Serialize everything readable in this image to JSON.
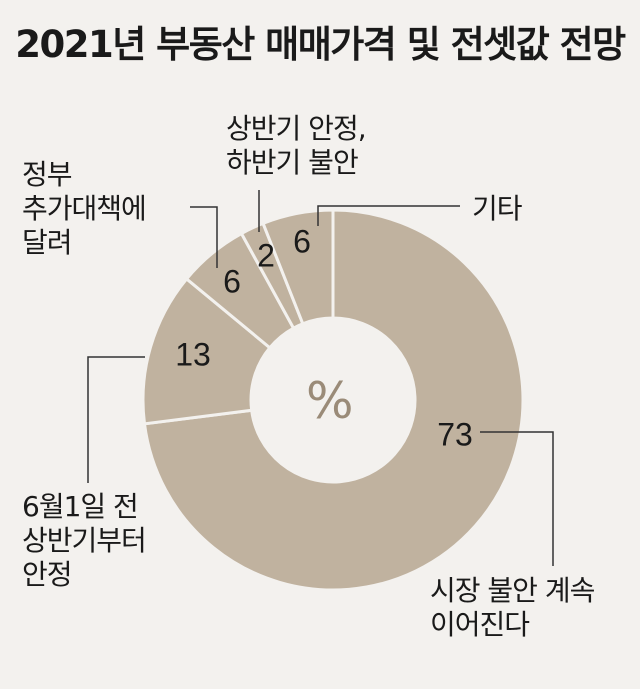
{
  "chart_data": {
    "type": "pie",
    "title": "2021년 부동산 매매가격 및 전셋값 전망",
    "unit": "%",
    "colors": {
      "slice": "#c0b29f",
      "separator": "#f3f1ee",
      "center": "#f3f1ee",
      "leader": "#333333"
    },
    "slices": [
      {
        "label": "시장 불안 계속 이어진다",
        "value": 73
      },
      {
        "label": "6월1일 전 상반기부터 안정",
        "value": 13
      },
      {
        "label": "정부 추가대책에 달려",
        "value": 6
      },
      {
        "label": "상반기 안정, 하반기 불안",
        "value": 2
      },
      {
        "label": "기타",
        "value": 6
      }
    ]
  }
}
